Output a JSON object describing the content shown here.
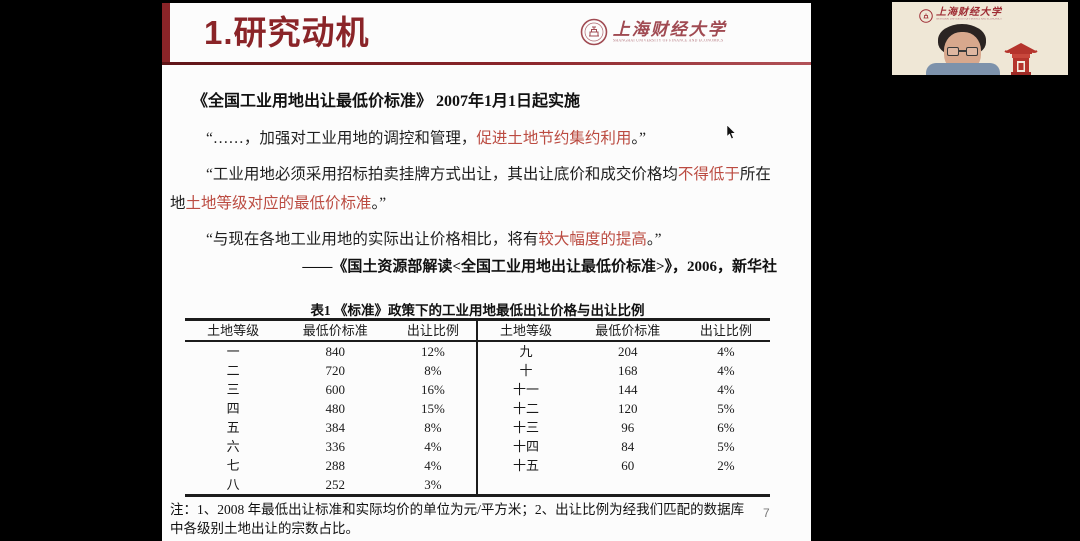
{
  "colors": {
    "accent": "#8a2428",
    "highlight": "#bb4b41",
    "logo_red": "#a04a52",
    "thumb_background": "#efe7d6",
    "slide_background": "#fcfcfc"
  },
  "slide": {
    "header": {
      "title": "1.研究动机"
    },
    "logo": {
      "name_zh": "上海财经大学",
      "name_en": "SHANGHAI UNIVERSITY OF FINANCE AND ECONOMICS"
    },
    "heading": "《全国工业用地出让最低价标准》 2007年1月1日起实施",
    "quotes": [
      {
        "segments": [
          {
            "t": "“……，加强对工业用地的调控和管理，",
            "red": false
          },
          {
            "t": "促进土地节约集约利用",
            "red": true
          },
          {
            "t": "。”",
            "red": false
          }
        ]
      },
      {
        "segments": [
          {
            "t": "“工业用地必须采用招标拍卖挂牌方式出让，其出让底价和成交价格均",
            "red": false
          },
          {
            "t": "不得低于",
            "red": true
          },
          {
            "t": "所在地",
            "red": false
          },
          {
            "t": "土地等级对应的最低价标准",
            "red": true
          },
          {
            "t": "。”",
            "red": false
          }
        ]
      },
      {
        "segments": [
          {
            "t": "“与现在各地工业用地的实际出让价格相比，将有",
            "red": false
          },
          {
            "t": "较大幅度的提高",
            "red": true
          },
          {
            "t": "。”",
            "red": false
          }
        ]
      }
    ],
    "citation": "——《国土资源部解读<全国工业用地出让最低价标准>》，2006，新华社",
    "table": {
      "title": "表1 《标准》政策下的工业用地最低出让价格与出让比例",
      "headers": [
        "土地等级",
        "最低价标准",
        "出让比例",
        "土地等级",
        "最低价标准",
        "出让比例"
      ],
      "left_rows": [
        [
          "一",
          "840",
          "12%"
        ],
        [
          "二",
          "720",
          "8%"
        ],
        [
          "三",
          "600",
          "16%"
        ],
        [
          "四",
          "480",
          "15%"
        ],
        [
          "五",
          "384",
          "8%"
        ],
        [
          "六",
          "336",
          "4%"
        ],
        [
          "七",
          "288",
          "4%"
        ],
        [
          "八",
          "252",
          "3%"
        ]
      ],
      "right_rows": [
        [
          "九",
          "204",
          "4%"
        ],
        [
          "十",
          "168",
          "4%"
        ],
        [
          "十一",
          "144",
          "4%"
        ],
        [
          "十二",
          "120",
          "5%"
        ],
        [
          "十三",
          "96",
          "6%"
        ],
        [
          "十四",
          "84",
          "5%"
        ],
        [
          "十五",
          "60",
          "2%"
        ]
      ]
    },
    "note_line1": "注：1、2008 年最低出让标准和实际均价的单位为元/平方米；2、出让比例为经我们匹配的数据库",
    "note_line2": "中各级别土地出让的宗数占比。",
    "page_number": "7"
  },
  "video_thumbnail": {
    "logo_zh": "上海财经大学",
    "logo_en": "SHANGHAI UNIVERSITY OF FINANCE AND ECONOMICS"
  }
}
